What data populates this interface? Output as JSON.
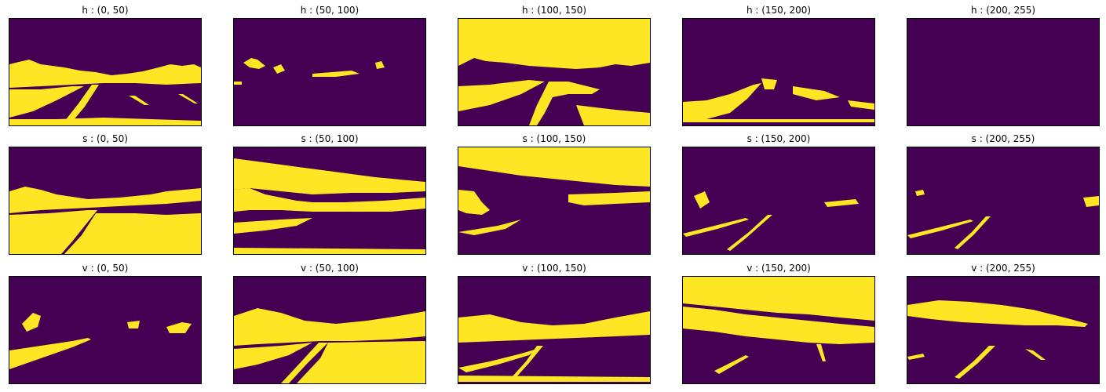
{
  "colors": {
    "background_class": "#440154",
    "foreground_class": "#fde725"
  },
  "panels": [
    {
      "title": "h : (0, 50)"
    },
    {
      "title": "h : (50, 100)"
    },
    {
      "title": "h : (100, 150)"
    },
    {
      "title": "h : (150, 200)"
    },
    {
      "title": "h : (200, 255)"
    },
    {
      "title": "s : (0, 50)"
    },
    {
      "title": "s : (50, 100)"
    },
    {
      "title": "s : (100, 150)"
    },
    {
      "title": "s : (150, 200)"
    },
    {
      "title": "s : (200, 255)"
    },
    {
      "title": "v : (0, 50)"
    },
    {
      "title": "v : (50, 100)"
    },
    {
      "title": "v : (100, 150)"
    },
    {
      "title": "v : (150, 200)"
    },
    {
      "title": "v : (200, 255)"
    }
  ]
}
